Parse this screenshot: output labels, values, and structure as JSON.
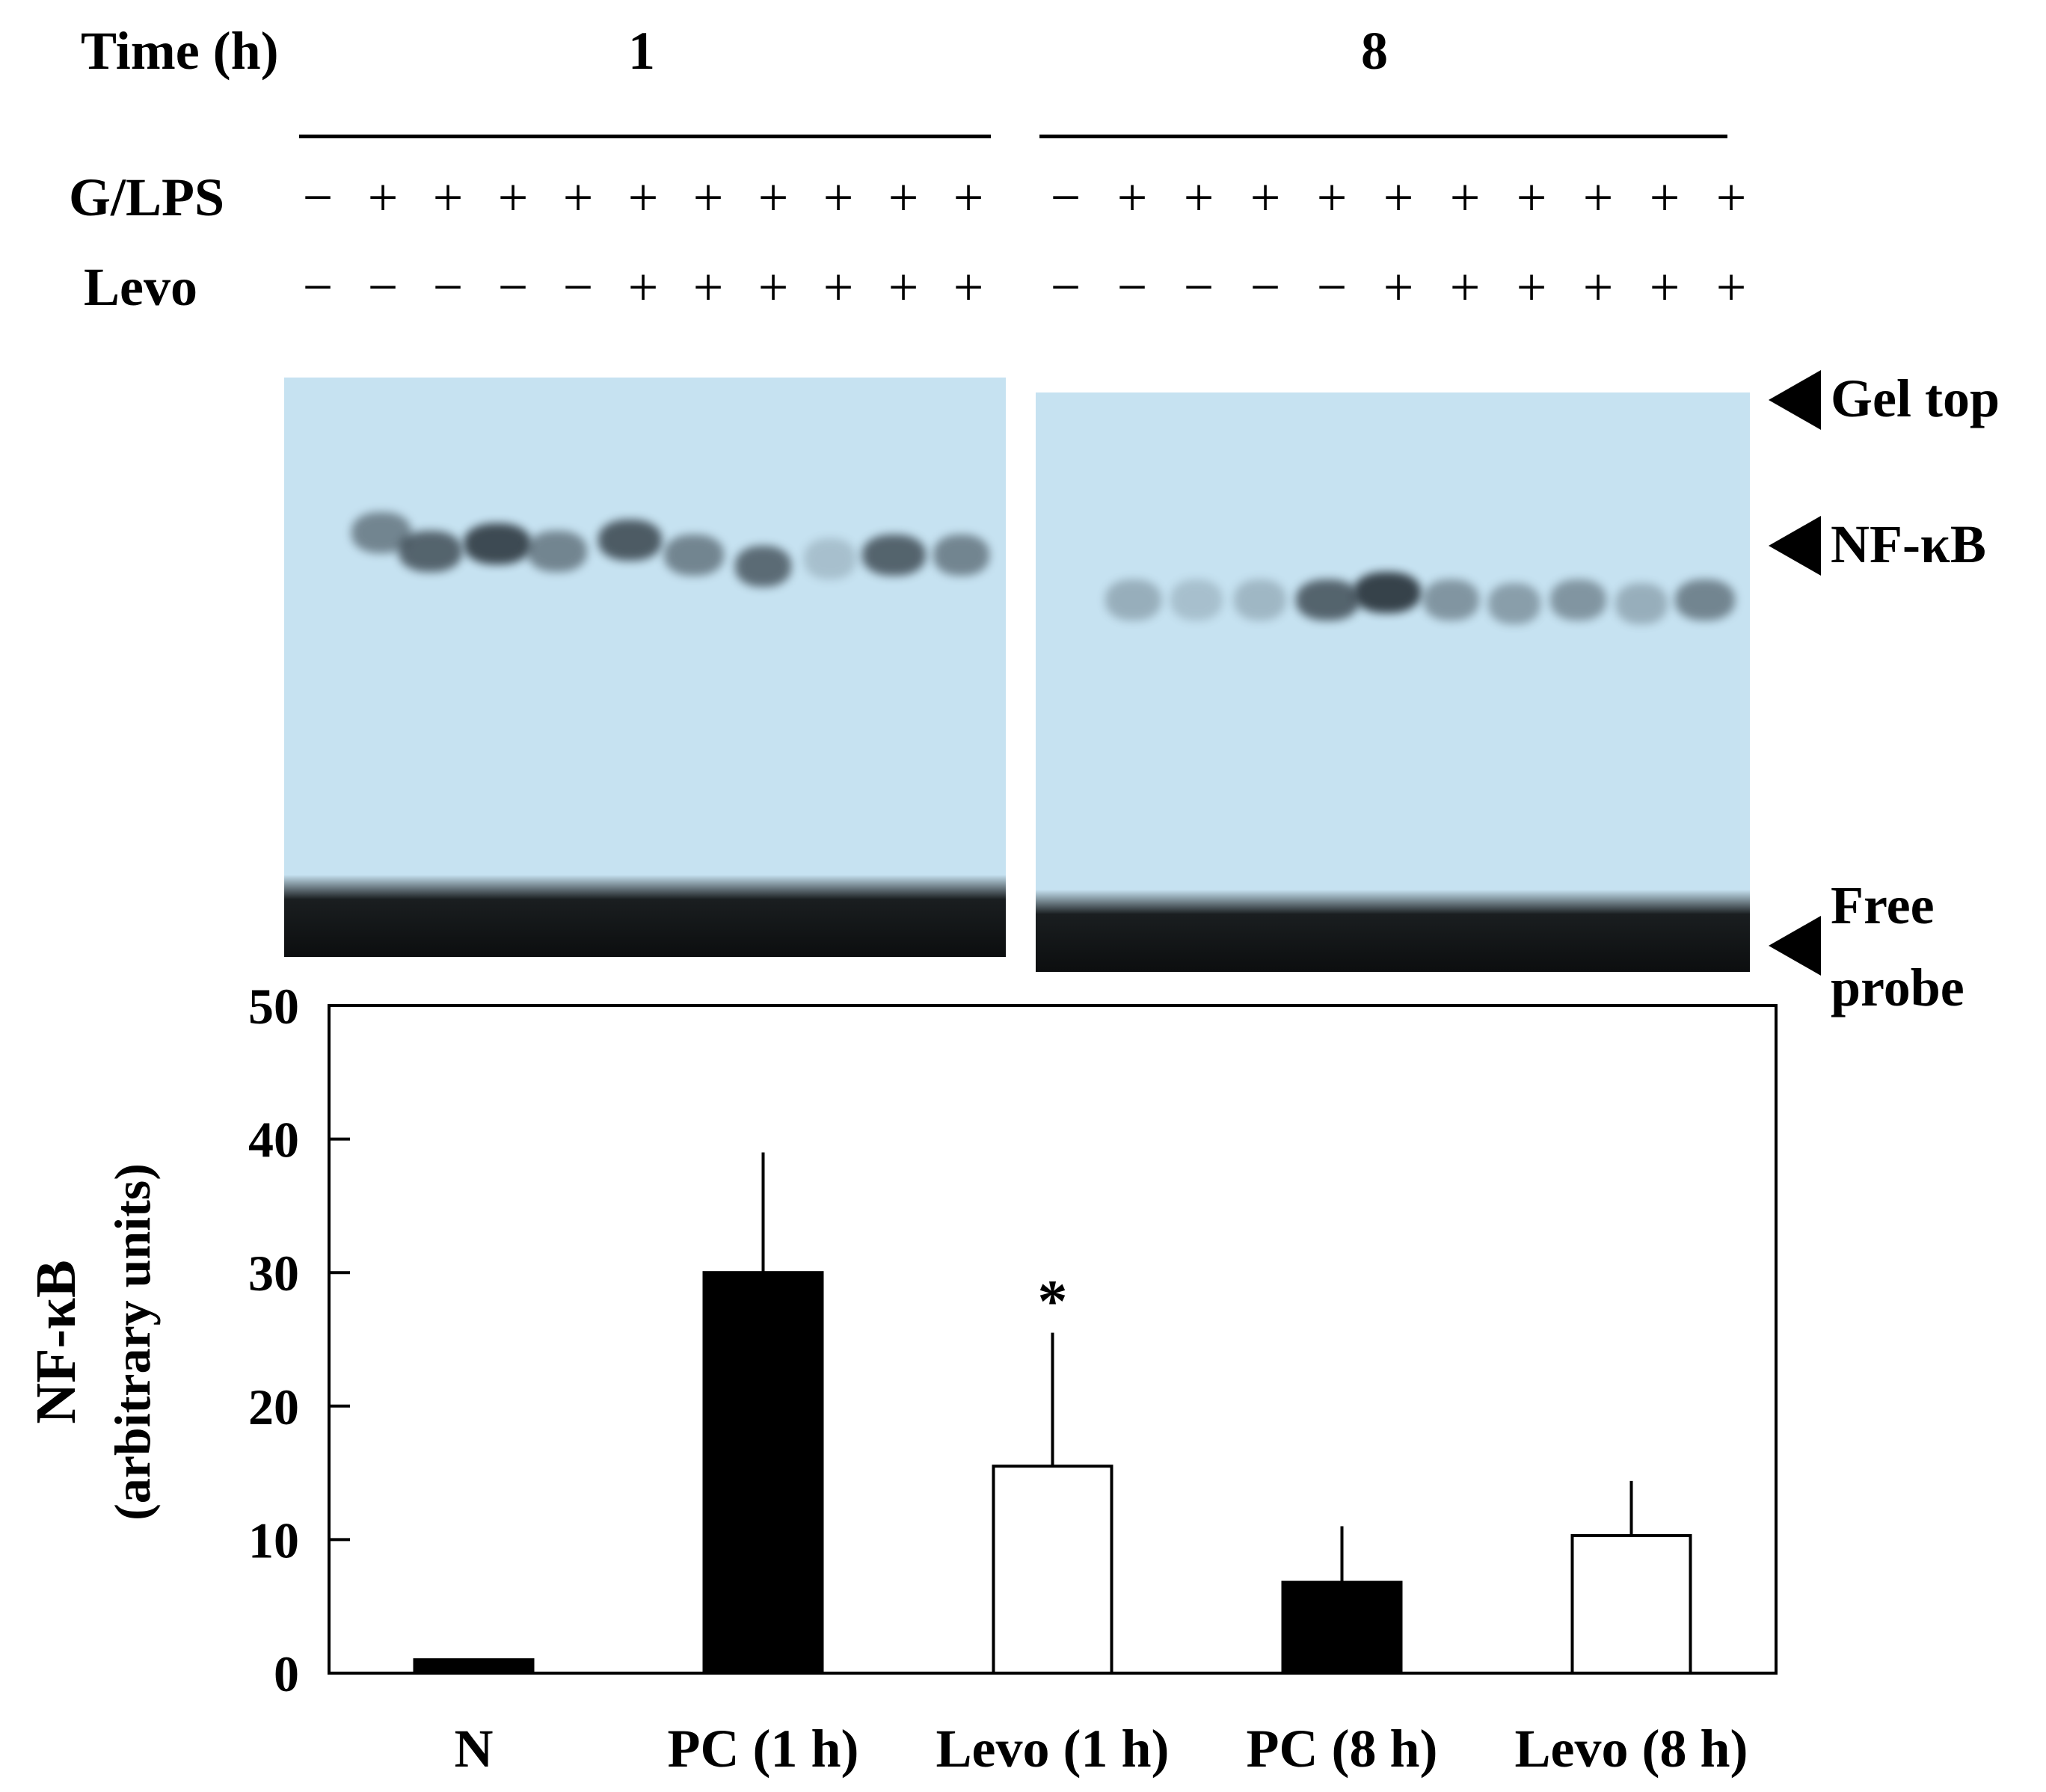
{
  "gel_panel": {
    "time_label": "Time (h)",
    "time_groups": [
      "1",
      "8"
    ],
    "row_labels": {
      "g_lps": "G/LPS",
      "levo": "Levo"
    },
    "g_lps_signs": [
      [
        "−",
        "+",
        "+",
        "+",
        "+",
        "+",
        "+",
        "+",
        "+",
        "+",
        "+"
      ],
      [
        "−",
        "+",
        "+",
        "+",
        "+",
        "+",
        "+",
        "+",
        "+",
        "+",
        "+"
      ]
    ],
    "levo_signs": [
      [
        "−",
        "−",
        "−",
        "−",
        "−",
        "+",
        "+",
        "+",
        "+",
        "+",
        "+"
      ],
      [
        "−",
        "−",
        "−",
        "−",
        "−",
        "+",
        "+",
        "+",
        "+",
        "+",
        "+"
      ]
    ],
    "markers": {
      "gel_top": "Gel top",
      "nfkb": "NF-κB",
      "free_probe_line1": "Free",
      "free_probe_line2": "probe"
    }
  },
  "chart_data": {
    "type": "bar",
    "categories": [
      "N",
      "PC (1 h)",
      "Levo (1 h)",
      "PC (8 h)",
      "Levo (8 h)"
    ],
    "values": [
      1,
      30,
      15.5,
      6.8,
      10.3
    ],
    "error_bars": [
      0,
      9,
      10,
      4.2,
      4.1
    ],
    "bar_colors": [
      "#000000",
      "#000000",
      "#ffffff",
      "#000000",
      "#ffffff"
    ],
    "annotations": [
      {
        "category": "Levo (1 h)",
        "text": "*"
      }
    ],
    "ylabel_line1": "NF-κB",
    "ylabel_line2": "(arbitrary  units)",
    "xlabel": "",
    "ylim": [
      0,
      50
    ],
    "yticks": [
      0,
      10,
      20,
      30,
      40,
      50
    ]
  },
  "colors": {
    "gel_background": "#c6e2f1",
    "band": "#2f3a42"
  }
}
